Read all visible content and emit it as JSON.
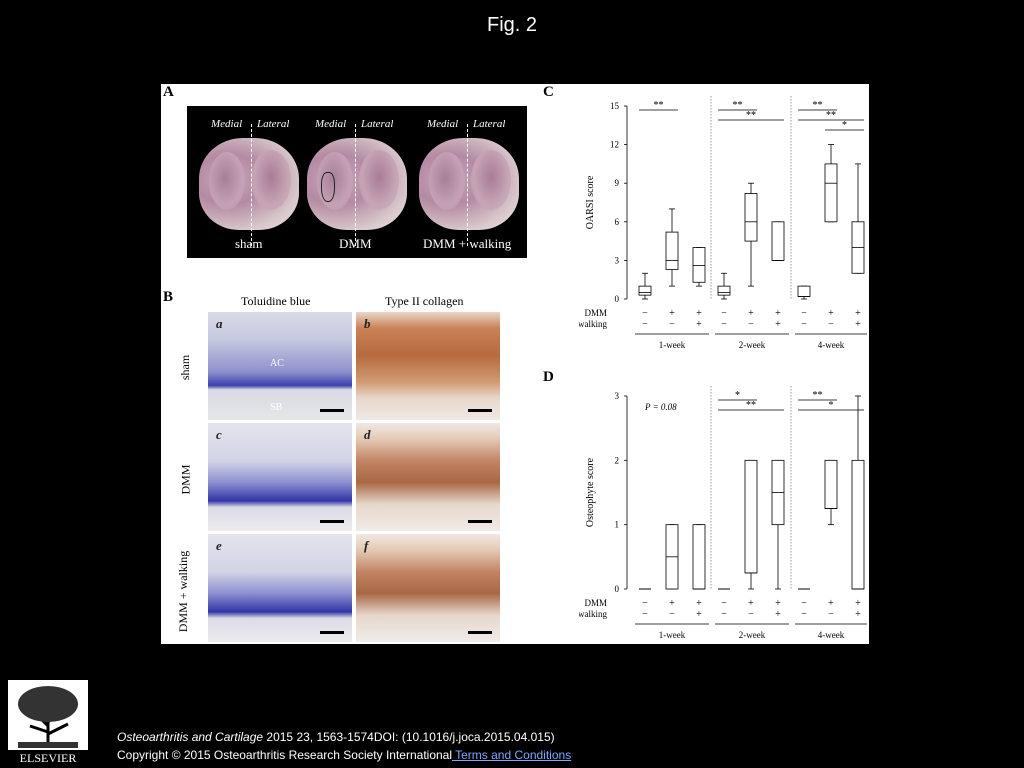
{
  "figure_title": "Fig. 2",
  "panels": {
    "a": "A",
    "b": "B",
    "c": "C",
    "d": "D"
  },
  "panelA": {
    "side_labels": [
      "Medial",
      "Lateral"
    ],
    "groups": [
      "sham",
      "DMM",
      "DMM + walking"
    ]
  },
  "panelB": {
    "columns": [
      "Toluidine blue",
      "Type II collagen"
    ],
    "rows": [
      "sham",
      "DMM",
      "DMM + walking"
    ],
    "sublabels": [
      "a",
      "b",
      "c",
      "d",
      "e",
      "f"
    ],
    "tissue_labels": [
      "AC",
      "SB"
    ]
  },
  "axis_rows": {
    "dmm_label": "DMM",
    "walking_label": "walking",
    "dmm_signs": [
      "−",
      "+",
      "+",
      "−",
      "+",
      "+",
      "−",
      "+",
      "+"
    ],
    "walking_signs": [
      "−",
      "−",
      "+",
      "−",
      "−",
      "+",
      "−",
      "−",
      "+"
    ],
    "weeks": [
      "1-week",
      "2-week",
      "4-week"
    ]
  },
  "chart_data": [
    {
      "type": "box",
      "ylabel": "OARSI score",
      "ylim": [
        0,
        15
      ],
      "yticks": [
        0,
        3,
        6,
        9,
        12,
        15
      ],
      "groups": [
        "1-week",
        "2-week",
        "4-week"
      ],
      "boxes": [
        {
          "week": "1-week",
          "condition": "sham",
          "min": 0,
          "q1": 0.3,
          "median": 0.5,
          "q3": 1,
          "max": 2
        },
        {
          "week": "1-week",
          "condition": "DMM",
          "min": 1,
          "q1": 2.3,
          "median": 3,
          "q3": 5.2,
          "max": 7
        },
        {
          "week": "1-week",
          "condition": "DMM + walking",
          "min": 1,
          "q1": 1.3,
          "median": 2.6,
          "q3": 4,
          "max": 4
        },
        {
          "week": "2-week",
          "condition": "sham",
          "min": 0,
          "q1": 0.3,
          "median": 0.5,
          "q3": 1,
          "max": 2
        },
        {
          "week": "2-week",
          "condition": "DMM",
          "min": 1,
          "q1": 4.5,
          "median": 6,
          "q3": 8.2,
          "max": 9
        },
        {
          "week": "2-week",
          "condition": "DMM + walking",
          "min": 3,
          "q1": 3,
          "median": 3,
          "q3": 6,
          "max": 6
        },
        {
          "week": "4-week",
          "condition": "sham",
          "min": 0,
          "q1": 0.2,
          "median": 0.2,
          "q3": 1,
          "max": 1
        },
        {
          "week": "4-week",
          "condition": "DMM",
          "min": 6,
          "q1": 6,
          "median": 9,
          "q3": 10.5,
          "max": 12
        },
        {
          "week": "4-week",
          "condition": "DMM + walking",
          "min": 2,
          "q1": 2,
          "median": 4,
          "q3": 6,
          "max": 10.5
        }
      ],
      "significance": [
        {
          "week": "1-week",
          "label": "**",
          "from": 0,
          "to": 1
        },
        {
          "week": "2-week",
          "label": "**",
          "from": 0,
          "to": 1
        },
        {
          "week": "2-week",
          "label": "**",
          "from": 0,
          "to": 2
        },
        {
          "week": "4-week",
          "label": "**",
          "from": 0,
          "to": 1
        },
        {
          "week": "4-week",
          "label": "**",
          "from": 0,
          "to": 2
        },
        {
          "week": "4-week",
          "label": "*",
          "from": 1,
          "to": 2
        }
      ]
    },
    {
      "type": "box",
      "ylabel": "Osteophyte score",
      "ylim": [
        0,
        3
      ],
      "yticks": [
        0,
        1,
        2,
        3
      ],
      "groups": [
        "1-week",
        "2-week",
        "4-week"
      ],
      "annotation": "P = 0.08",
      "boxes": [
        {
          "week": "1-week",
          "condition": "sham",
          "min": 0,
          "q1": 0,
          "median": 0,
          "q3": 0,
          "max": 0
        },
        {
          "week": "1-week",
          "condition": "DMM",
          "min": 0,
          "q1": 0,
          "median": 0.5,
          "q3": 1,
          "max": 1
        },
        {
          "week": "1-week",
          "condition": "DMM + walking",
          "min": 0,
          "q1": 0,
          "median": 0,
          "q3": 1,
          "max": 1
        },
        {
          "week": "2-week",
          "condition": "sham",
          "min": 0,
          "q1": 0,
          "median": 0,
          "q3": 0,
          "max": 0
        },
        {
          "week": "2-week",
          "condition": "DMM",
          "min": 0,
          "q1": 0.25,
          "median": 0.25,
          "q3": 2,
          "max": 2
        },
        {
          "week": "2-week",
          "condition": "DMM + walking",
          "min": 0,
          "q1": 1,
          "median": 1.5,
          "q3": 2,
          "max": 2
        },
        {
          "week": "4-week",
          "condition": "sham",
          "min": 0,
          "q1": 0,
          "median": 0,
          "q3": 0,
          "max": 0
        },
        {
          "week": "4-week",
          "condition": "DMM",
          "min": 1,
          "q1": 1.25,
          "median": 1.25,
          "q3": 2,
          "max": 2
        },
        {
          "week": "4-week",
          "condition": "DMM + walking",
          "min": 0,
          "q1": 0,
          "median": 0,
          "q3": 2,
          "max": 3
        }
      ],
      "significance": [
        {
          "week": "2-week",
          "label": "*",
          "from": 0,
          "to": 1
        },
        {
          "week": "2-week",
          "label": "**",
          "from": 0,
          "to": 2
        },
        {
          "week": "4-week",
          "label": "**",
          "from": 0,
          "to": 1
        },
        {
          "week": "4-week",
          "label": "*",
          "from": 0,
          "to": 2
        }
      ]
    }
  ],
  "footer": {
    "journal": "Osteoarthritis and Cartilage",
    "citation": " 2015 23, 1563-1574DOI: (10.1016/j.joca.2015.04.015)",
    "copyright": "Copyright © 2015 Osteoarthritis Research Society International",
    "terms": " Terms and Conditions",
    "publisher": "ELSEVIER"
  },
  "colors": {
    "background": "#000000",
    "link": "#7fa7ff"
  }
}
